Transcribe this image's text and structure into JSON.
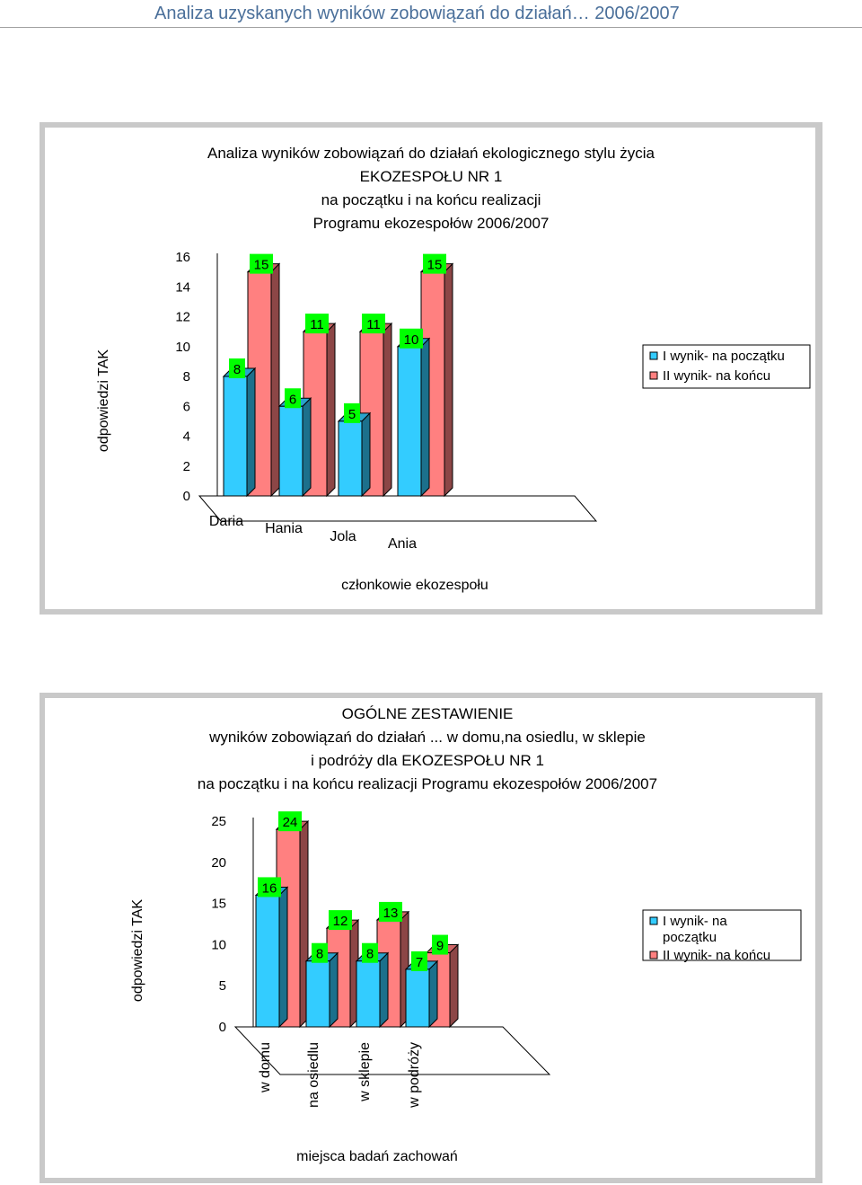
{
  "header": {
    "title": "Analiza uzyskanych wyników zobowiązań do działań… 2006/2007"
  },
  "chart_data": [
    {
      "type": "bar",
      "title_lines": [
        "Analiza wyników zobowiązań do działań ekologicznego stylu życia",
        "EKOZESPOŁU NR 1",
        "na początku i na końcu realizacji",
        "Programu ekozespołów 2006/2007"
      ],
      "xlabel": "członkowie ekozespołu",
      "ylabel": "odpowiedzi TAK",
      "ylim": [
        0,
        16
      ],
      "yticks": [
        0,
        2,
        4,
        6,
        8,
        10,
        12,
        14,
        16
      ],
      "categories": [
        "Daria",
        "Hania",
        "Jola",
        "Ania"
      ],
      "series": [
        {
          "name": "I wynik- na początku",
          "color": "#33CCFF",
          "values": [
            8,
            6,
            5,
            10
          ]
        },
        {
          "name": "II wynik- na końcu",
          "color": "#FF8080",
          "values": [
            15,
            11,
            11,
            15
          ]
        }
      ],
      "legend_position": "right",
      "label_color": "#00FF00"
    },
    {
      "type": "bar",
      "title_lines": [
        "OGÓLNE ZESTAWIENIE",
        "wyników zobowiązań do działań ... w domu,na osiedlu, w sklepie",
        "i podróży dla EKOZESPOŁU NR 1",
        "na początku i na końcu realizacji Programu ekozespołów 2006/2007"
      ],
      "xlabel": "miejsca badań zachowań",
      "ylabel": "odpowiedzi TAK",
      "ylim": [
        0,
        25
      ],
      "yticks": [
        0,
        5,
        10,
        15,
        20,
        25
      ],
      "categories": [
        "w domu",
        "na osiedlu",
        "w sklepie",
        "w podróży"
      ],
      "series": [
        {
          "name": "I wynik- na początku",
          "color": "#33CCFF",
          "values": [
            16,
            8,
            8,
            7
          ]
        },
        {
          "name": "II wynik- na końcu",
          "color": "#FF8080",
          "values": [
            24,
            12,
            13,
            9
          ]
        }
      ],
      "legend_position": "right",
      "label_color": "#00FF00"
    }
  ]
}
